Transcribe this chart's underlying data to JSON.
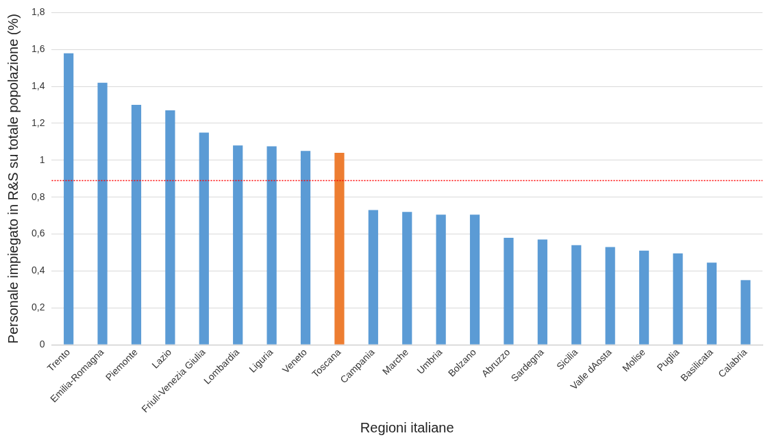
{
  "chart_data": {
    "type": "bar",
    "xlabel": "Regioni italiane",
    "ylabel": "Personale impiegato in R&S su totale popolazione (%)",
    "categories": [
      "Trento",
      "Emilia-Romagna",
      "Piemonte",
      "Lazio",
      "Friuli-Venezia Giulia",
      "Lombardia",
      "Liguria",
      "Veneto",
      "Toscana",
      "Campania",
      "Marche",
      "Umbria",
      "Bolzano",
      "Abruzzo",
      "Sardegna",
      "Sicilia",
      "Valle dAosta",
      "Molise",
      "Puglia",
      "Basilicata",
      "Calabria"
    ],
    "values": [
      1.58,
      1.42,
      1.3,
      1.27,
      1.15,
      1.08,
      1.075,
      1.05,
      1.04,
      0.73,
      0.72,
      0.705,
      0.705,
      0.58,
      0.57,
      0.54,
      0.53,
      0.51,
      0.495,
      0.445,
      0.35
    ],
    "colors": [
      "#5b9bd5",
      "#5b9bd5",
      "#5b9bd5",
      "#5b9bd5",
      "#5b9bd5",
      "#5b9bd5",
      "#5b9bd5",
      "#5b9bd5",
      "#ed7d31",
      "#5b9bd5",
      "#5b9bd5",
      "#5b9bd5",
      "#5b9bd5",
      "#5b9bd5",
      "#5b9bd5",
      "#5b9bd5",
      "#5b9bd5",
      "#5b9bd5",
      "#5b9bd5",
      "#5b9bd5",
      "#5b9bd5"
    ],
    "ylim": [
      0,
      1.8
    ],
    "yticks": [
      0,
      {
        "value": 0.2,
        "label": "0,2"
      },
      {
        "value": 0.4,
        "label": "0,4"
      },
      {
        "value": 0.6,
        "label": "0,6"
      },
      {
        "value": 0.8,
        "label": "0,8"
      },
      1,
      {
        "value": 1.2,
        "label": "1,2"
      },
      {
        "value": 1.4,
        "label": "1,4"
      },
      {
        "value": 1.6,
        "label": "1,6"
      },
      {
        "value": 1.8,
        "label": "1,8"
      }
    ],
    "grid": "y",
    "legend": false,
    "ref_lines": [
      {
        "axis": "y",
        "value": 0.89,
        "color": "#ff0000",
        "line_style": "dotted"
      }
    ]
  }
}
